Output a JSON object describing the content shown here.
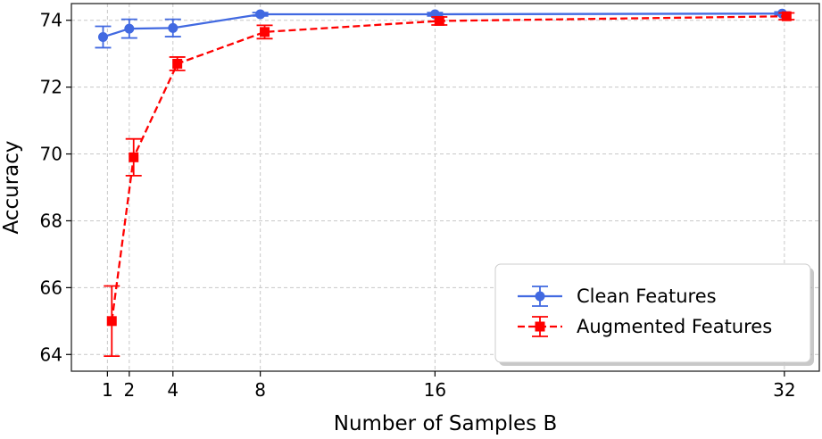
{
  "chart_data": {
    "type": "line",
    "title": "",
    "xlabel": "Number of Samples B",
    "ylabel": "Accuracy",
    "x": [
      1,
      2,
      4,
      8,
      16,
      32
    ],
    "xticks": [
      "1",
      "2",
      "4",
      "8",
      "16",
      "32"
    ],
    "yticks": [
      "64",
      "66",
      "68",
      "70",
      "72",
      "74"
    ],
    "ylim": [
      63.5,
      74.5
    ],
    "xlim": [
      -0.65,
      33.6
    ],
    "grid": true,
    "legend_position": "lower-right",
    "series": [
      {
        "name": "Clean Features",
        "color": "#4169e1",
        "marker": "circle",
        "linestyle": "solid",
        "x": [
          0.8,
          2,
          4,
          8,
          16,
          31.9
        ],
        "values": [
          73.5,
          73.75,
          73.77,
          74.18,
          74.18,
          74.2
        ],
        "errors": [
          0.32,
          0.28,
          0.26,
          0.05,
          0.05,
          0.05
        ]
      },
      {
        "name": "Augmented Features",
        "color": "#ff0000",
        "marker": "square",
        "linestyle": "dashed",
        "x": [
          1.2,
          2.2,
          4.2,
          8.2,
          16.2,
          32.1
        ],
        "values": [
          65.0,
          69.9,
          72.7,
          73.65,
          73.98,
          74.12
        ],
        "errors": [
          1.05,
          0.55,
          0.2,
          0.2,
          0.12,
          0.1
        ]
      }
    ]
  }
}
